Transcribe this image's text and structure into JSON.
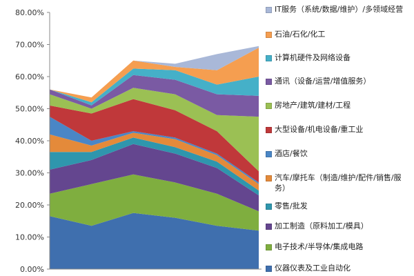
{
  "chart_data": {
    "type": "area",
    "stacked": true,
    "x": [
      1,
      2,
      3,
      4,
      5,
      6
    ],
    "ylim": [
      0,
      0.8
    ],
    "yticks": [
      0,
      0.1,
      0.2,
      0.3,
      0.4,
      0.5,
      0.6,
      0.7,
      0.8
    ],
    "ytick_labels": [
      "0.00%",
      "10.00%",
      "20.00%",
      "30.00%",
      "40.00%",
      "50.00%",
      "60.00%",
      "70.00%",
      "80.00%"
    ],
    "grid": false,
    "legend_position": "right",
    "series": [
      {
        "name": "仪器仪表及工业自动化",
        "color": "#3f6fae",
        "values": [
          0.165,
          0.135,
          0.175,
          0.16,
          0.135,
          0.12
        ]
      },
      {
        "name": "电子技术/半导体/集成电路",
        "color": "#7fae3f",
        "values": [
          0.07,
          0.13,
          0.12,
          0.11,
          0.1,
          0.06
        ]
      },
      {
        "name": "加工制造（原料加工/模具）",
        "color": "#64468f",
        "values": [
          0.075,
          0.075,
          0.095,
          0.09,
          0.08,
          0.05
        ]
      },
      {
        "name": "零售/批发",
        "color": "#2f96ad",
        "values": [
          0.055,
          0.025,
          0.02,
          0.02,
          0.02,
          0.015
        ]
      },
      {
        "name": "汽车/摩托车（制造/维护/配件/销售/服务）",
        "color": "#e48a3a",
        "values": [
          0.055,
          0.02,
          0.015,
          0.025,
          0.02,
          0.02
        ]
      },
      {
        "name": "酒店/餐饮",
        "color": "#4a86c6",
        "values": [
          0.055,
          0.015,
          0.005,
          0.005,
          0.005,
          0.005
        ]
      },
      {
        "name": "大型设备/机电设备/重工业",
        "color": "#c0383a",
        "values": [
          0.035,
          0.085,
          0.1,
          0.085,
          0.07,
          0.035
        ]
      },
      {
        "name": "房地产/建筑/建材/工程",
        "color": "#9bc054",
        "values": [
          0.035,
          0.015,
          0.035,
          0.05,
          0.05,
          0.17
        ]
      },
      {
        "name": "通讯（设备/运营/增值服务）",
        "color": "#7a5aa3",
        "values": [
          0.015,
          0.01,
          0.04,
          0.045,
          0.065,
          0.065
        ]
      },
      {
        "name": "计算机硬件及网络设备",
        "color": "#45b0c8",
        "values": [
          0.0,
          0.01,
          0.02,
          0.03,
          0.03,
          0.06
        ]
      },
      {
        "name": "石油/石化/化工",
        "color": "#f59e50",
        "values": [
          0.0,
          0.015,
          0.025,
          0.01,
          0.045,
          0.09
        ]
      },
      {
        "name": "IT服务（系统/数据/维护）/多领域经营",
        "color": "#a9b8d8",
        "values": [
          0.0,
          0.0,
          0.0,
          0.01,
          0.05,
          0.005
        ]
      }
    ]
  }
}
